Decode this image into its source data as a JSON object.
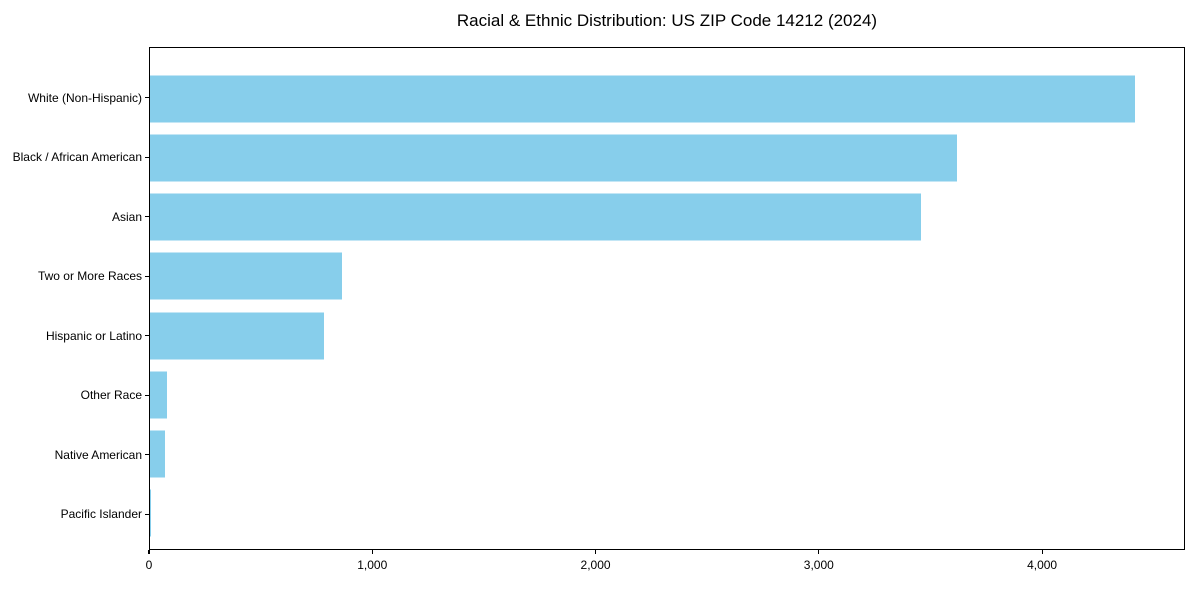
{
  "page": {
    "background": "#ffffff"
  },
  "chart_data": {
    "type": "bar",
    "orientation": "horizontal",
    "title": "Racial & Ethnic Distribution: US ZIP Code 14212 (2024)",
    "categories": [
      "White (Non-Hispanic)",
      "Black / African American",
      "Asian",
      "Two or More Races",
      "Hispanic or Latino",
      "Other Race",
      "Native American",
      "Pacific Islander"
    ],
    "values": [
      4420,
      3620,
      3460,
      860,
      780,
      78,
      68,
      4
    ],
    "xlabel": "",
    "ylabel": "",
    "xlim": [
      0,
      4640
    ],
    "xticks": [
      0,
      1000,
      2000,
      3000,
      4000
    ],
    "xtick_labels": [
      "0",
      "1,000",
      "2,000",
      "3,000",
      "4,000"
    ],
    "bar_color": "#87CEEB",
    "axis_color": "#000000",
    "text_color": "#000000",
    "grid": false,
    "legend": "none"
  }
}
